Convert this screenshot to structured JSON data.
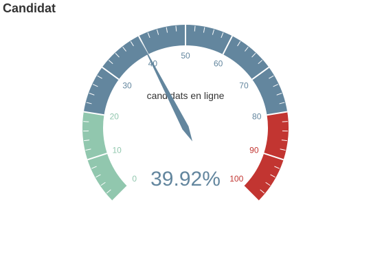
{
  "title": "Candidat",
  "chart_data": {
    "type": "gauge",
    "min": 0,
    "max": 100,
    "value": 39.92,
    "value_text": "39.92%",
    "detail_label": "candidats en ligne",
    "tick_labels": [
      "0",
      "10",
      "20",
      "30",
      "40",
      "50",
      "60",
      "70",
      "80",
      "90",
      "100"
    ],
    "bands": [
      {
        "from": 0,
        "to": 20,
        "color": "#91c7ae"
      },
      {
        "from": 20,
        "to": 80,
        "color": "#63869e"
      },
      {
        "from": 80,
        "to": 100,
        "color": "#c23531"
      }
    ],
    "pointer_color": "#63869e",
    "value_color": "#63869e"
  }
}
